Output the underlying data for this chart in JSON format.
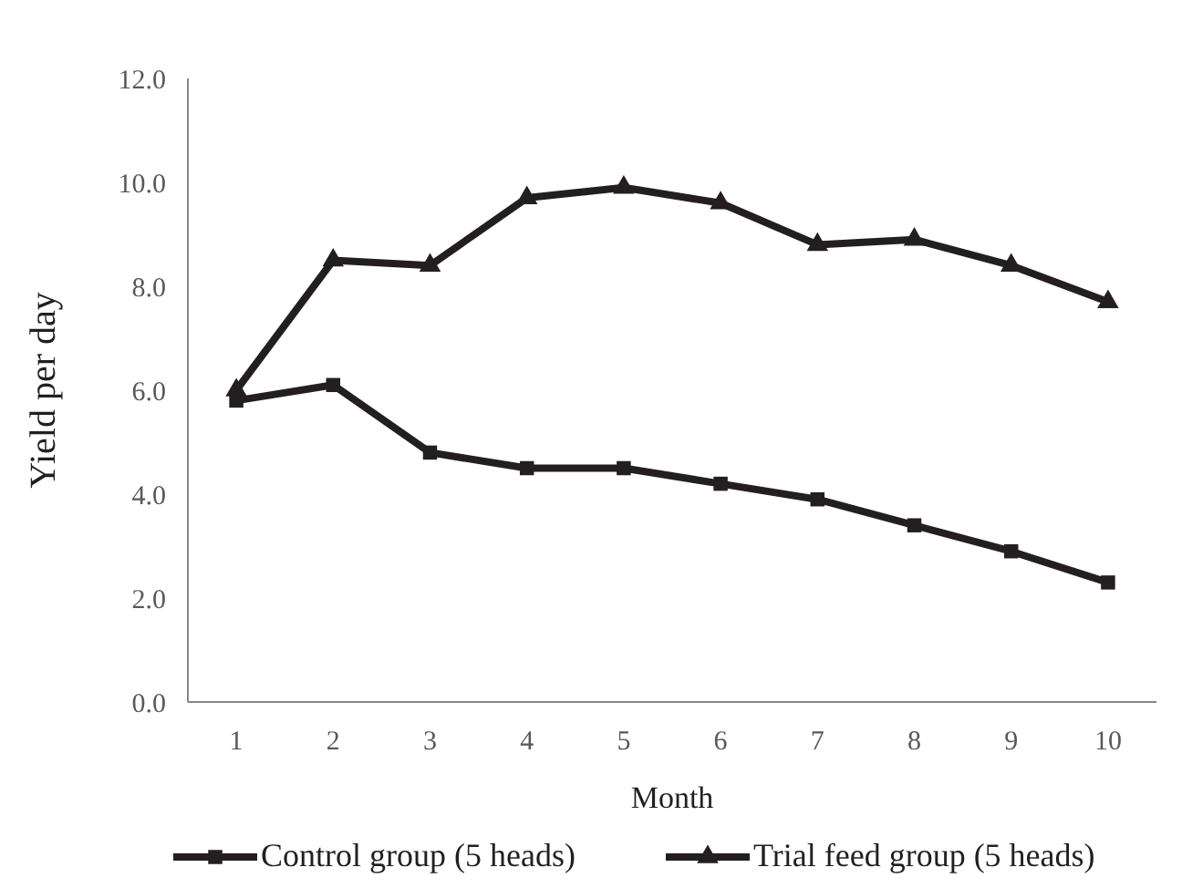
{
  "chart_data": {
    "type": "line",
    "xlabel": "Month",
    "ylabel": "Yield per day",
    "categories": [
      "1",
      "2",
      "3",
      "4",
      "5",
      "6",
      "7",
      "8",
      "9",
      "10"
    ],
    "series": [
      {
        "name": "Control group (5 heads)",
        "color": "#231f20",
        "marker": "square",
        "values": [
          5.8,
          6.1,
          4.8,
          4.5,
          4.5,
          4.2,
          3.9,
          3.4,
          2.9,
          2.3
        ]
      },
      {
        "name": "Trial feed group (5 heads)",
        "color": "#231f20",
        "marker": "triangle",
        "values": [
          6.0,
          8.5,
          8.4,
          9.7,
          9.9,
          9.6,
          8.8,
          8.9,
          8.4,
          7.7
        ]
      }
    ],
    "ylim": [
      0,
      12
    ],
    "yticks": [
      {
        "value": 0,
        "label": "0.0"
      },
      {
        "value": 2,
        "label": "2.0"
      },
      {
        "value": 4,
        "label": "4.0"
      },
      {
        "value": 6,
        "label": "6.0"
      },
      {
        "value": 8,
        "label": "8.0"
      },
      {
        "value": 10,
        "label": "10.0"
      },
      {
        "value": 12,
        "label": "12.0"
      }
    ],
    "grid": false,
    "legend": "bottom"
  }
}
